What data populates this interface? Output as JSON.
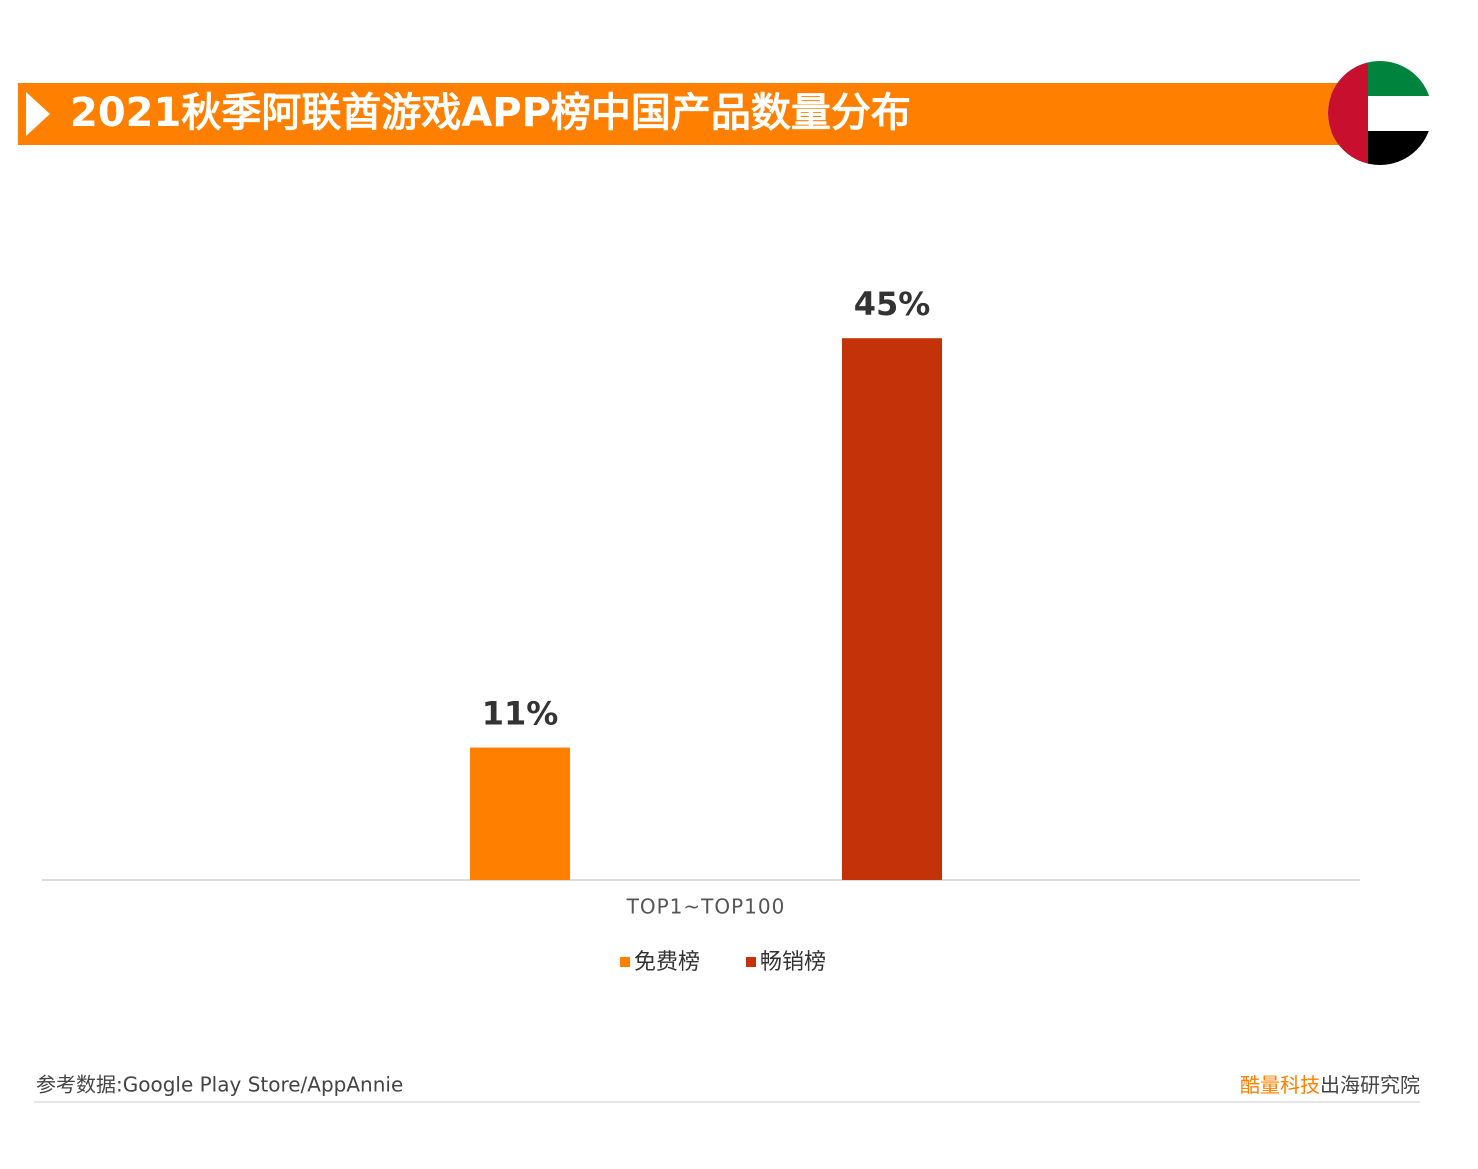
{
  "header": {
    "title": "2021秋季阿联酋游戏APP榜中国产品数量分布"
  },
  "chart_data": {
    "type": "bar",
    "categories": [
      "TOP1~TOP100"
    ],
    "series": [
      {
        "name": "免费榜",
        "color": "#ff7f00",
        "values": [
          11
        ],
        "value_labels": [
          "11%"
        ]
      },
      {
        "name": "畅销榜",
        "color": "#c33208",
        "values": [
          45
        ],
        "value_labels": [
          "45%"
        ]
      }
    ],
    "ylim": [
      0,
      50
    ],
    "grid": false,
    "legend": "bottom"
  },
  "footer": {
    "source": "参考数据:Google Play Store/AppAnnie",
    "brand": "酷量科技",
    "brand_suffix": "出海研究院"
  }
}
